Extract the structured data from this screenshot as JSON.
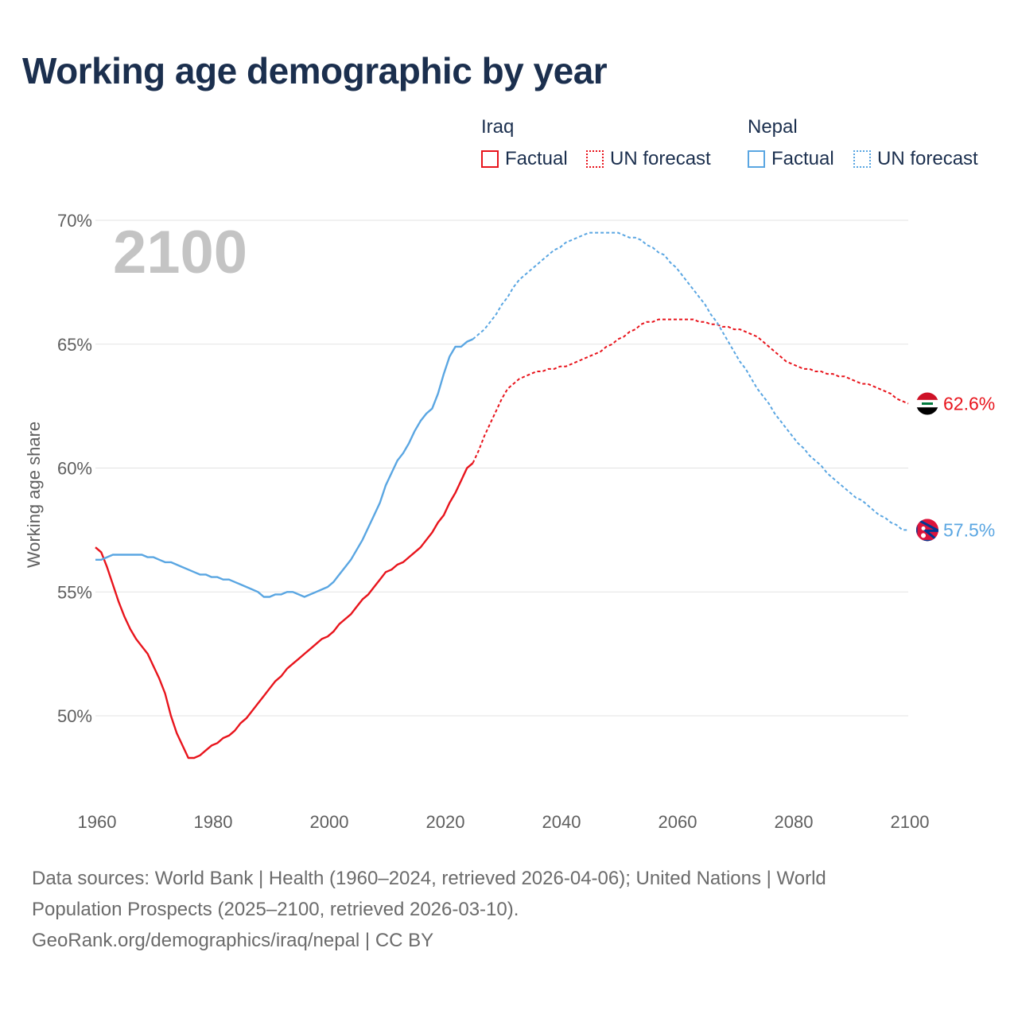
{
  "title": "Working age demographic by year",
  "legend": {
    "groups": [
      {
        "name": "Iraq",
        "factual_label": "Factual",
        "forecast_label": "UN forecast",
        "color": "#e8141c"
      },
      {
        "name": "Nepal",
        "factual_label": "Factual",
        "forecast_label": "UN forecast",
        "color": "#5aa6e2"
      }
    ]
  },
  "sources": {
    "line1": "Data sources: World Bank | Health (1960–2024, retrieved 2026-04-06); United Nations | World",
    "line2": "Population Prospects (2025–2100, retrieved 2026-03-10).",
    "line3": "GeoRank.org/demographics/iraq/nepal | CC BY"
  },
  "chart_data": {
    "type": "line",
    "title": "Working age demographic by year",
    "xlabel": "",
    "ylabel": "Working age share",
    "year_label": "2100",
    "xlim": [
      1960,
      2100
    ],
    "ylim": [
      46.5,
      70
    ],
    "x_ticks": [
      1960,
      1980,
      2000,
      2020,
      2040,
      2060,
      2080,
      2100
    ],
    "x_tick_labels": [
      "1960",
      "1980",
      "2000",
      "2020",
      "2040",
      "2060",
      "2080",
      "2100"
    ],
    "y_ticks": [
      50,
      55,
      60,
      65,
      70
    ],
    "y_tick_labels": [
      "50%",
      "55%",
      "60%",
      "65%",
      "70%"
    ],
    "grid": true,
    "series": [
      {
        "name": "Iraq",
        "color": "#e8141c",
        "end_label": "62.6%",
        "factual": [
          [
            1960,
            56.8
          ],
          [
            1961,
            56.6
          ],
          [
            1962,
            56.0
          ],
          [
            1963,
            55.3
          ],
          [
            1964,
            54.6
          ],
          [
            1965,
            54.0
          ],
          [
            1966,
            53.5
          ],
          [
            1967,
            53.1
          ],
          [
            1968,
            52.8
          ],
          [
            1969,
            52.5
          ],
          [
            1970,
            52.0
          ],
          [
            1971,
            51.5
          ],
          [
            1972,
            50.9
          ],
          [
            1973,
            50.0
          ],
          [
            1974,
            49.3
          ],
          [
            1975,
            48.8
          ],
          [
            1976,
            48.3
          ],
          [
            1977,
            48.3
          ],
          [
            1978,
            48.4
          ],
          [
            1979,
            48.6
          ],
          [
            1980,
            48.8
          ],
          [
            1981,
            48.9
          ],
          [
            1982,
            49.1
          ],
          [
            1983,
            49.2
          ],
          [
            1984,
            49.4
          ],
          [
            1985,
            49.7
          ],
          [
            1986,
            49.9
          ],
          [
            1987,
            50.2
          ],
          [
            1988,
            50.5
          ],
          [
            1989,
            50.8
          ],
          [
            1990,
            51.1
          ],
          [
            1991,
            51.4
          ],
          [
            1992,
            51.6
          ],
          [
            1993,
            51.9
          ],
          [
            1994,
            52.1
          ],
          [
            1995,
            52.3
          ],
          [
            1996,
            52.5
          ],
          [
            1997,
            52.7
          ],
          [
            1998,
            52.9
          ],
          [
            1999,
            53.1
          ],
          [
            2000,
            53.2
          ],
          [
            2001,
            53.4
          ],
          [
            2002,
            53.7
          ],
          [
            2003,
            53.9
          ],
          [
            2004,
            54.1
          ],
          [
            2005,
            54.4
          ],
          [
            2006,
            54.7
          ],
          [
            2007,
            54.9
          ],
          [
            2008,
            55.2
          ],
          [
            2009,
            55.5
          ],
          [
            2010,
            55.8
          ],
          [
            2011,
            55.9
          ],
          [
            2012,
            56.1
          ],
          [
            2013,
            56.2
          ],
          [
            2014,
            56.4
          ],
          [
            2015,
            56.6
          ],
          [
            2016,
            56.8
          ],
          [
            2017,
            57.1
          ],
          [
            2018,
            57.4
          ],
          [
            2019,
            57.8
          ],
          [
            2020,
            58.1
          ],
          [
            2021,
            58.6
          ],
          [
            2022,
            59.0
          ],
          [
            2023,
            59.5
          ],
          [
            2024,
            60.0
          ],
          [
            2025,
            60.2
          ]
        ],
        "forecast": [
          [
            2025,
            60.2
          ],
          [
            2026,
            60.7
          ],
          [
            2027,
            61.3
          ],
          [
            2028,
            61.8
          ],
          [
            2029,
            62.3
          ],
          [
            2030,
            62.8
          ],
          [
            2031,
            63.2
          ],
          [
            2032,
            63.4
          ],
          [
            2033,
            63.6
          ],
          [
            2034,
            63.7
          ],
          [
            2035,
            63.8
          ],
          [
            2036,
            63.9
          ],
          [
            2037,
            63.9
          ],
          [
            2038,
            64.0
          ],
          [
            2039,
            64.0
          ],
          [
            2040,
            64.1
          ],
          [
            2041,
            64.1
          ],
          [
            2042,
            64.2
          ],
          [
            2043,
            64.3
          ],
          [
            2044,
            64.4
          ],
          [
            2045,
            64.5
          ],
          [
            2046,
            64.6
          ],
          [
            2047,
            64.7
          ],
          [
            2048,
            64.9
          ],
          [
            2049,
            65.0
          ],
          [
            2050,
            65.2
          ],
          [
            2051,
            65.3
          ],
          [
            2052,
            65.5
          ],
          [
            2053,
            65.6
          ],
          [
            2054,
            65.8
          ],
          [
            2055,
            65.9
          ],
          [
            2056,
            65.9
          ],
          [
            2057,
            66.0
          ],
          [
            2058,
            66.0
          ],
          [
            2059,
            66.0
          ],
          [
            2060,
            66.0
          ],
          [
            2061,
            66.0
          ],
          [
            2062,
            66.0
          ],
          [
            2063,
            66.0
          ],
          [
            2064,
            65.9
          ],
          [
            2065,
            65.9
          ],
          [
            2066,
            65.8
          ],
          [
            2067,
            65.8
          ],
          [
            2068,
            65.7
          ],
          [
            2069,
            65.7
          ],
          [
            2070,
            65.6
          ],
          [
            2071,
            65.6
          ],
          [
            2072,
            65.5
          ],
          [
            2073,
            65.4
          ],
          [
            2074,
            65.3
          ],
          [
            2075,
            65.1
          ],
          [
            2076,
            64.9
          ],
          [
            2077,
            64.7
          ],
          [
            2078,
            64.5
          ],
          [
            2079,
            64.3
          ],
          [
            2080,
            64.2
          ],
          [
            2081,
            64.1
          ],
          [
            2082,
            64.0
          ],
          [
            2083,
            64.0
          ],
          [
            2084,
            63.9
          ],
          [
            2085,
            63.9
          ],
          [
            2086,
            63.8
          ],
          [
            2087,
            63.8
          ],
          [
            2088,
            63.7
          ],
          [
            2089,
            63.7
          ],
          [
            2090,
            63.6
          ],
          [
            2091,
            63.5
          ],
          [
            2092,
            63.4
          ],
          [
            2093,
            63.4
          ],
          [
            2094,
            63.3
          ],
          [
            2095,
            63.2
          ],
          [
            2096,
            63.1
          ],
          [
            2097,
            63.0
          ],
          [
            2098,
            62.8
          ],
          [
            2099,
            62.7
          ],
          [
            2100,
            62.6
          ]
        ]
      },
      {
        "name": "Nepal",
        "color": "#5aa6e2",
        "end_label": "57.5%",
        "factual": [
          [
            1960,
            56.3
          ],
          [
            1961,
            56.3
          ],
          [
            1962,
            56.4
          ],
          [
            1963,
            56.5
          ],
          [
            1964,
            56.5
          ],
          [
            1965,
            56.5
          ],
          [
            1966,
            56.5
          ],
          [
            1967,
            56.5
          ],
          [
            1968,
            56.5
          ],
          [
            1969,
            56.4
          ],
          [
            1970,
            56.4
          ],
          [
            1971,
            56.3
          ],
          [
            1972,
            56.2
          ],
          [
            1973,
            56.2
          ],
          [
            1974,
            56.1
          ],
          [
            1975,
            56.0
          ],
          [
            1976,
            55.9
          ],
          [
            1977,
            55.8
          ],
          [
            1978,
            55.7
          ],
          [
            1979,
            55.7
          ],
          [
            1980,
            55.6
          ],
          [
            1981,
            55.6
          ],
          [
            1982,
            55.5
          ],
          [
            1983,
            55.5
          ],
          [
            1984,
            55.4
          ],
          [
            1985,
            55.3
          ],
          [
            1986,
            55.2
          ],
          [
            1987,
            55.1
          ],
          [
            1988,
            55.0
          ],
          [
            1989,
            54.8
          ],
          [
            1990,
            54.8
          ],
          [
            1991,
            54.9
          ],
          [
            1992,
            54.9
          ],
          [
            1993,
            55.0
          ],
          [
            1994,
            55.0
          ],
          [
            1995,
            54.9
          ],
          [
            1996,
            54.8
          ],
          [
            1997,
            54.9
          ],
          [
            1998,
            55.0
          ],
          [
            1999,
            55.1
          ],
          [
            2000,
            55.2
          ],
          [
            2001,
            55.4
          ],
          [
            2002,
            55.7
          ],
          [
            2003,
            56.0
          ],
          [
            2004,
            56.3
          ],
          [
            2005,
            56.7
          ],
          [
            2006,
            57.1
          ],
          [
            2007,
            57.6
          ],
          [
            2008,
            58.1
          ],
          [
            2009,
            58.6
          ],
          [
            2010,
            59.3
          ],
          [
            2011,
            59.8
          ],
          [
            2012,
            60.3
          ],
          [
            2013,
            60.6
          ],
          [
            2014,
            61.0
          ],
          [
            2015,
            61.5
          ],
          [
            2016,
            61.9
          ],
          [
            2017,
            62.2
          ],
          [
            2018,
            62.4
          ],
          [
            2019,
            63.0
          ],
          [
            2020,
            63.8
          ],
          [
            2021,
            64.5
          ],
          [
            2022,
            64.9
          ],
          [
            2023,
            64.9
          ],
          [
            2024,
            65.1
          ],
          [
            2025,
            65.2
          ]
        ],
        "forecast": [
          [
            2025,
            65.2
          ],
          [
            2026,
            65.4
          ],
          [
            2027,
            65.6
          ],
          [
            2028,
            65.9
          ],
          [
            2029,
            66.2
          ],
          [
            2030,
            66.6
          ],
          [
            2031,
            66.9
          ],
          [
            2032,
            67.3
          ],
          [
            2033,
            67.6
          ],
          [
            2034,
            67.8
          ],
          [
            2035,
            68.0
          ],
          [
            2036,
            68.2
          ],
          [
            2037,
            68.4
          ],
          [
            2038,
            68.6
          ],
          [
            2039,
            68.8
          ],
          [
            2040,
            68.9
          ],
          [
            2041,
            69.1
          ],
          [
            2042,
            69.2
          ],
          [
            2043,
            69.3
          ],
          [
            2044,
            69.4
          ],
          [
            2045,
            69.5
          ],
          [
            2046,
            69.5
          ],
          [
            2047,
            69.5
          ],
          [
            2048,
            69.5
          ],
          [
            2049,
            69.5
          ],
          [
            2050,
            69.5
          ],
          [
            2051,
            69.4
          ],
          [
            2052,
            69.3
          ],
          [
            2053,
            69.3
          ],
          [
            2054,
            69.2
          ],
          [
            2055,
            69.0
          ],
          [
            2056,
            68.9
          ],
          [
            2057,
            68.7
          ],
          [
            2058,
            68.6
          ],
          [
            2059,
            68.3
          ],
          [
            2060,
            68.1
          ],
          [
            2061,
            67.8
          ],
          [
            2062,
            67.5
          ],
          [
            2063,
            67.2
          ],
          [
            2064,
            66.9
          ],
          [
            2065,
            66.6
          ],
          [
            2066,
            66.2
          ],
          [
            2067,
            65.9
          ],
          [
            2068,
            65.5
          ],
          [
            2069,
            65.1
          ],
          [
            2070,
            64.7
          ],
          [
            2071,
            64.3
          ],
          [
            2072,
            64.0
          ],
          [
            2073,
            63.6
          ],
          [
            2074,
            63.2
          ],
          [
            2075,
            62.9
          ],
          [
            2076,
            62.6
          ],
          [
            2077,
            62.2
          ],
          [
            2078,
            61.9
          ],
          [
            2079,
            61.6
          ],
          [
            2080,
            61.3
          ],
          [
            2081,
            61.0
          ],
          [
            2082,
            60.8
          ],
          [
            2083,
            60.5
          ],
          [
            2084,
            60.3
          ],
          [
            2085,
            60.1
          ],
          [
            2086,
            59.8
          ],
          [
            2087,
            59.6
          ],
          [
            2088,
            59.4
          ],
          [
            2089,
            59.2
          ],
          [
            2090,
            59.0
          ],
          [
            2091,
            58.8
          ],
          [
            2092,
            58.7
          ],
          [
            2093,
            58.5
          ],
          [
            2094,
            58.3
          ],
          [
            2095,
            58.1
          ],
          [
            2096,
            58.0
          ],
          [
            2097,
            57.8
          ],
          [
            2098,
            57.7
          ],
          [
            2099,
            57.5
          ],
          [
            2100,
            57.5
          ]
        ]
      }
    ]
  }
}
